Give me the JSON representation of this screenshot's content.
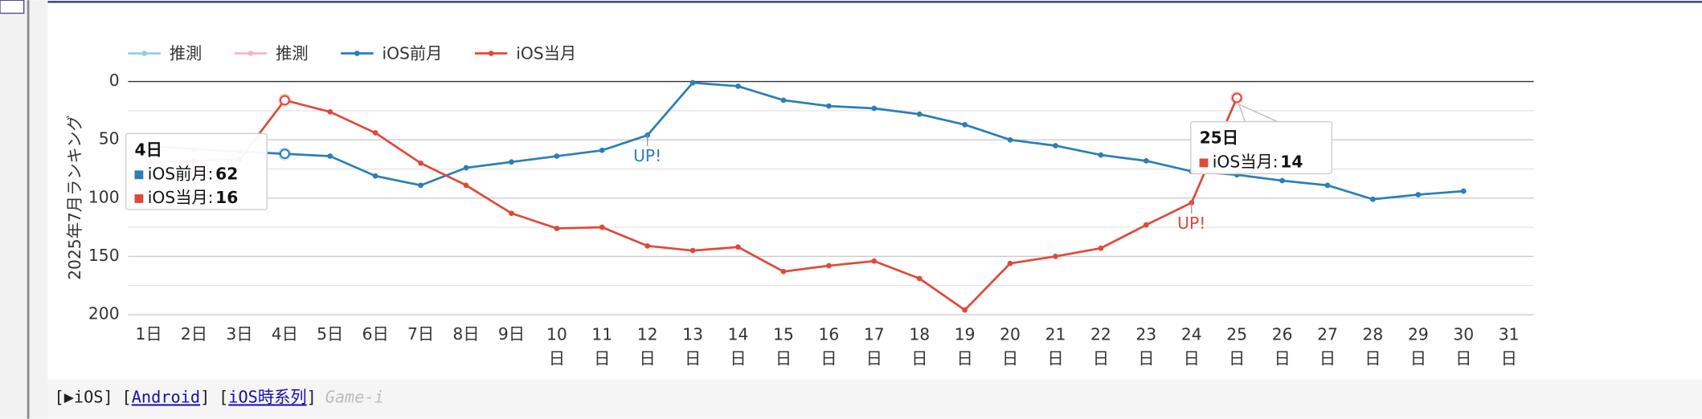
{
  "chart_data": {
    "type": "line",
    "y_label": "2025年7月ランキング",
    "categories": [
      "1日",
      "2日",
      "3日",
      "4日",
      "5日",
      "6日",
      "7日",
      "8日",
      "9日",
      "10日",
      "11日",
      "12日",
      "13日",
      "14日",
      "15日",
      "16日",
      "17日",
      "18日",
      "19日",
      "20日",
      "21日",
      "22日",
      "23日",
      "24日",
      "25日",
      "26日",
      "27日",
      "28日",
      "29日",
      "30日",
      "31日"
    ],
    "series": [
      {
        "name": "推測",
        "color": "#92cde6",
        "values": [
          null,
          null,
          null,
          null,
          null,
          null,
          null,
          null,
          null,
          null,
          null,
          null,
          null,
          null,
          null,
          null,
          null,
          null,
          null,
          null,
          null,
          null,
          null,
          null,
          null,
          null,
          null,
          null,
          null,
          null,
          null
        ]
      },
      {
        "name": "推測",
        "color": "#f3b8c6",
        "values": [
          null,
          null,
          null,
          null,
          null,
          null,
          null,
          null,
          null,
          null,
          null,
          null,
          null,
          null,
          null,
          null,
          null,
          null,
          null,
          null,
          null,
          null,
          null,
          null,
          null,
          null,
          null,
          null,
          null,
          null,
          null
        ]
      },
      {
        "name": "iOS前月",
        "color": "#2b7fb5",
        "values": [
          55,
          58,
          60,
          62,
          64,
          81,
          89,
          74,
          69,
          64,
          59,
          46,
          1,
          4,
          16,
          21,
          23,
          28,
          37,
          50,
          55,
          63,
          68,
          77,
          80,
          85,
          89,
          101,
          97,
          94,
          null
        ],
        "annotations": [
          {
            "text": "UP!",
            "category": "12日"
          }
        ]
      },
      {
        "name": "iOS当月",
        "color": "#e0493a",
        "values": [
          70,
          68,
          67,
          16,
          26,
          44,
          70,
          89,
          113,
          126,
          125,
          141,
          145,
          142,
          163,
          158,
          154,
          169,
          196,
          156,
          150,
          143,
          123,
          104,
          14,
          null,
          null,
          null,
          null,
          null,
          null
        ],
        "annotations": [
          {
            "text": "UP!",
            "category": "24日"
          }
        ]
      }
    ],
    "ylim": [
      0,
      200
    ],
    "y_reversed": true,
    "yticks": [
      0,
      50,
      100,
      150,
      200
    ],
    "minor_yticks": [
      25,
      75,
      125,
      175
    ],
    "grid": true,
    "legend": "top-left",
    "tooltips": [
      {
        "category": "4日",
        "series": [
          "iOS前月",
          "iOS当月"
        ]
      },
      {
        "category": "25日",
        "series": [
          "iOS当月"
        ]
      }
    ]
  },
  "nav": {
    "links": [
      "▶iOS",
      "Android",
      "iOS時系列"
    ],
    "brand": "Game-i"
  }
}
